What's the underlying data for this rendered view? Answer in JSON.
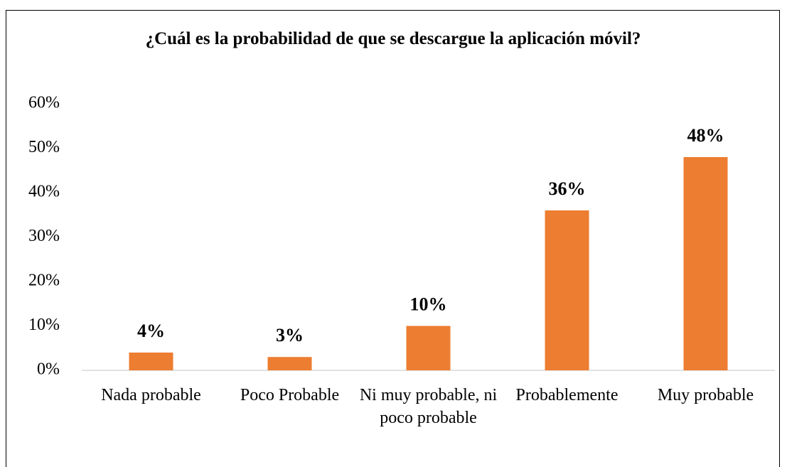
{
  "chart_data": {
    "type": "bar",
    "title": "¿Cuál es la probabilidad de que se descargue la aplicación móvil?",
    "categories": [
      "Nada probable",
      "Poco Probable",
      "Ni muy probable, ni poco probable",
      "Probablemente",
      "Muy probable"
    ],
    "values": [
      4,
      3,
      10,
      36,
      48
    ],
    "value_labels": [
      "4%",
      "3%",
      "10%",
      "36%",
      "48%"
    ],
    "color": "#ed7d31",
    "ylim": [
      0,
      60
    ],
    "yticks": [
      {
        "value": 0,
        "label": "0%"
      },
      {
        "value": 10,
        "label": "10%"
      },
      {
        "value": 20,
        "label": "20%"
      },
      {
        "value": 30,
        "label": "30%"
      },
      {
        "value": 40,
        "label": "40%"
      },
      {
        "value": 50,
        "label": "50%"
      },
      {
        "value": 60,
        "label": "60%"
      }
    ],
    "grid": false
  }
}
